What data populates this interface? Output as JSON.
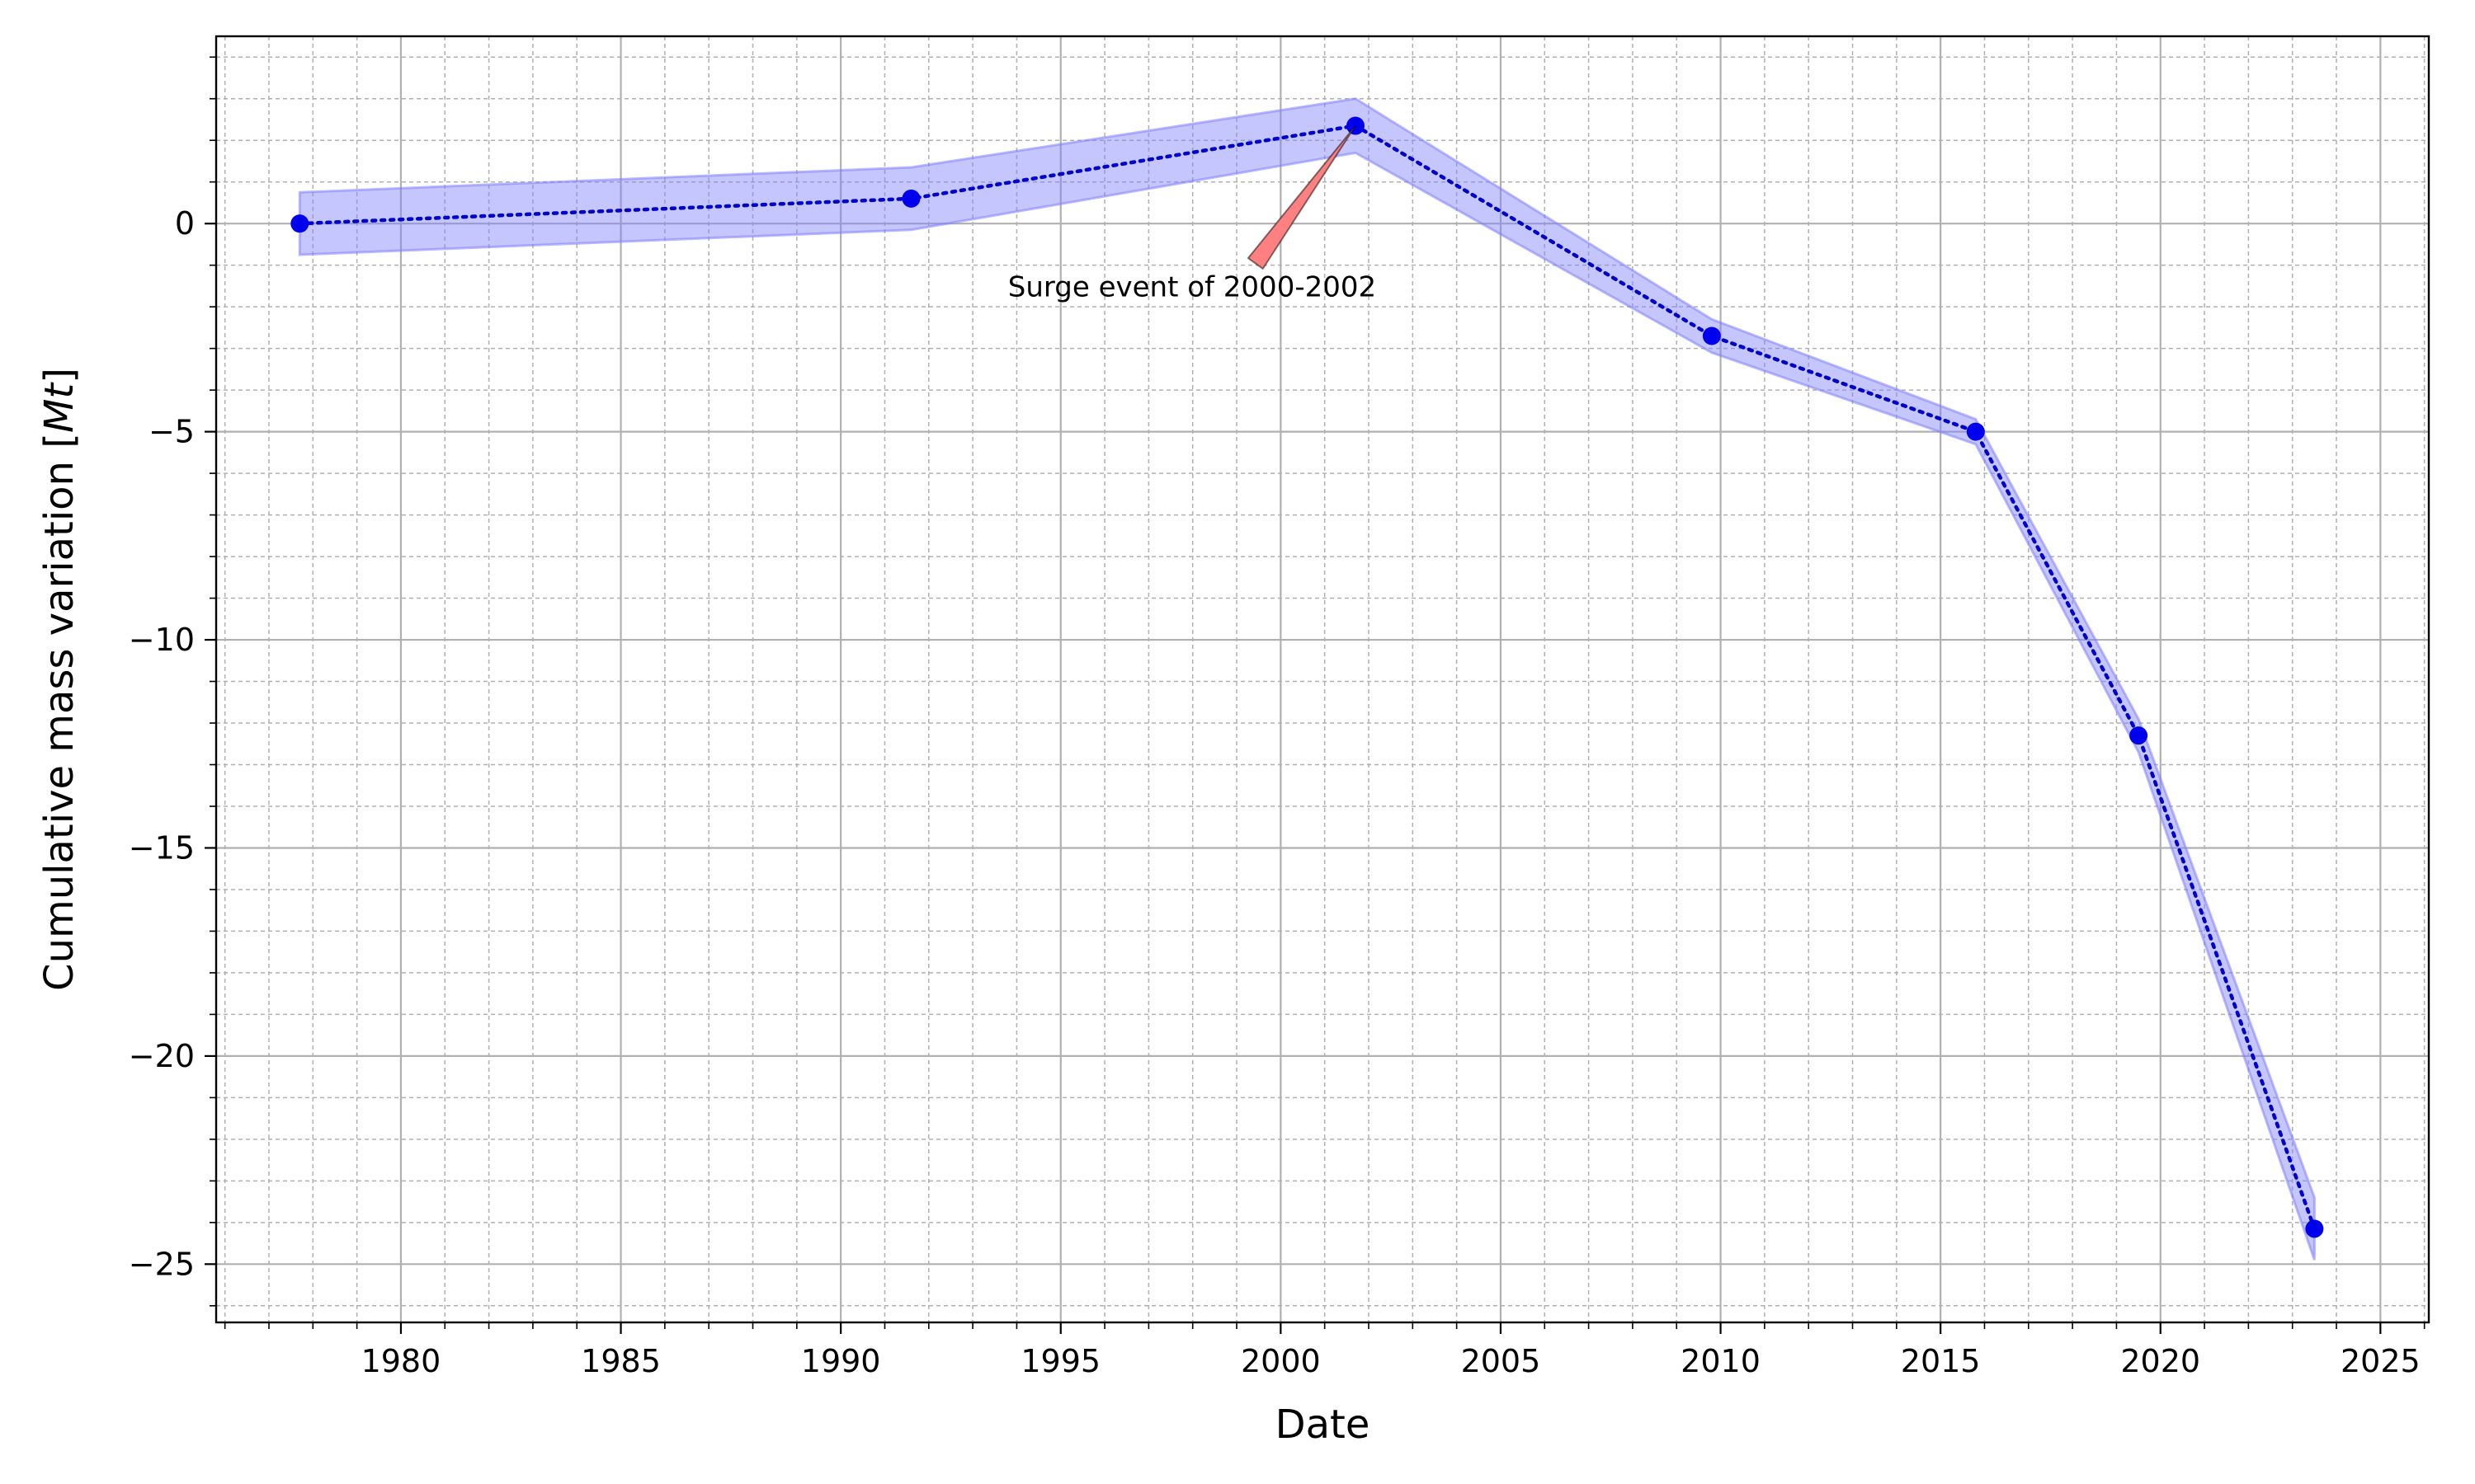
{
  "chart_data": {
    "type": "line",
    "xlabel": "Date",
    "ylabel": "Cumulative mass variation [Mt]",
    "ylabel_main": "Cumulative mass variation [",
    "ylabel_unit": "Mt",
    "ylabel_close": "]",
    "xlim": [
      1975.8,
      2026.1
    ],
    "ylim": [
      -26.4,
      4.5
    ],
    "x_ticks": [
      1980,
      1985,
      1990,
      1995,
      2000,
      2005,
      2010,
      2015,
      2020,
      2025
    ],
    "x_tick_labels": [
      "1980",
      "1985",
      "1990",
      "1995",
      "2000",
      "2005",
      "2010",
      "2015",
      "2020",
      "2025"
    ],
    "y_ticks": [
      0,
      -5,
      -10,
      -15,
      -20,
      -25
    ],
    "y_tick_labels": [
      "0",
      "−5",
      "−10",
      "−15",
      "−20",
      "−25"
    ],
    "x_minor_step": 1,
    "y_minor_step": 1,
    "grid": true,
    "series": [
      {
        "x": [
          1977.7,
          1991.6,
          2001.7,
          2009.8,
          2015.8,
          2019.5,
          2023.5
        ],
        "y": [
          0.0,
          0.6,
          2.35,
          -2.7,
          -5.0,
          -12.3,
          -24.15
        ],
        "lower": [
          -0.75,
          -0.15,
          1.7,
          -3.1,
          -5.3,
          -12.7,
          -24.9
        ],
        "upper": [
          0.75,
          1.35,
          3.0,
          -2.3,
          -4.7,
          -11.9,
          -23.4
        ],
        "line_color": "#0000cc",
        "marker_color": "#0000ee",
        "band_color": "#8080ff"
      }
    ],
    "annotations": [
      {
        "text": "Surge event of 2000-2002",
        "x": 2001.7,
        "y": 2.35,
        "text_x": 1993.8,
        "text_y": -1.75,
        "arrow_color": "#ff8080"
      }
    ]
  }
}
